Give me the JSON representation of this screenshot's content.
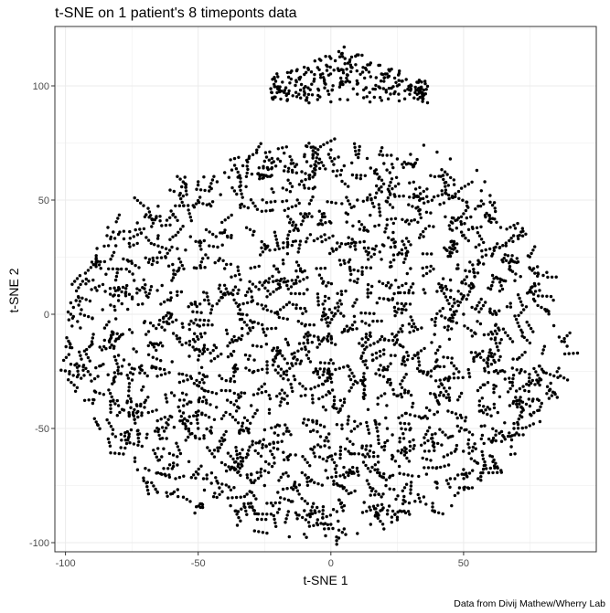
{
  "chart_data": {
    "type": "scatter",
    "title": "t-SNE on 1 patient's 8 timeponts data",
    "xlabel": "t-SNE 1",
    "ylabel": "t-SNE 2",
    "caption": "Data from Divij Mathew/Wherry Lab",
    "xlim": [
      -104,
      100
    ],
    "ylim": [
      -104,
      126
    ],
    "xticks": [
      -100,
      -50,
      0,
      50
    ],
    "yticks": [
      -100,
      -50,
      0,
      50,
      100
    ],
    "grid": true,
    "point_color": "#000000",
    "main_cluster": {
      "center": [
        -5,
        -10
      ],
      "x_extent": [
        -100,
        90
      ],
      "y_extent": [
        -98,
        75
      ],
      "approx_points": 3400
    },
    "top_cluster": {
      "x_extent": [
        -23,
        37
      ],
      "y_extent": [
        92,
        117
      ],
      "approx_points": 260
    },
    "points": [
      [
        -98,
        5
      ],
      [
        -97,
        3
      ],
      [
        -99,
        1
      ],
      [
        -96,
        6
      ],
      [
        -95,
        4
      ],
      [
        -94,
        2
      ],
      [
        -97,
        -1
      ],
      [
        -98,
        0
      ],
      [
        -84,
        38
      ],
      [
        -82,
        36
      ],
      [
        -80,
        35
      ],
      [
        -78,
        33
      ],
      [
        -76,
        31
      ],
      [
        -83,
        33
      ],
      [
        -81,
        30
      ],
      [
        -85,
        10
      ],
      [
        -82,
        8
      ],
      [
        -80,
        6
      ],
      [
        -83,
        4
      ],
      [
        -86,
        2
      ],
      [
        -81,
        -2
      ],
      [
        -80,
        -18
      ],
      [
        -78,
        -20
      ],
      [
        -76,
        -22
      ],
      [
        -74,
        -24
      ],
      [
        -79,
        -26
      ],
      [
        -82,
        -38
      ],
      [
        -80,
        -40
      ],
      [
        -78,
        -42
      ],
      [
        -76,
        -44
      ],
      [
        -74,
        -46
      ],
      [
        -60,
        -45
      ],
      [
        -55,
        -48
      ],
      [
        -50,
        -50
      ],
      [
        -45,
        -52
      ],
      [
        -40,
        -55
      ],
      [
        -55,
        60
      ],
      [
        -50,
        58
      ],
      [
        -45,
        55
      ],
      [
        -40,
        62
      ],
      [
        -35,
        60
      ],
      [
        -25,
        67
      ],
      [
        -20,
        68
      ],
      [
        -15,
        66
      ],
      [
        -10,
        69
      ],
      [
        -5,
        70
      ],
      [
        0,
        72
      ],
      [
        5,
        65
      ],
      [
        15,
        64
      ],
      [
        20,
        66
      ],
      [
        25,
        68
      ],
      [
        30,
        70
      ],
      [
        35,
        74
      ],
      [
        40,
        71
      ],
      [
        45,
        68
      ],
      [
        55,
        63
      ],
      [
        58,
        58
      ],
      [
        60,
        52
      ],
      [
        62,
        45
      ],
      [
        64,
        38
      ],
      [
        66,
        30
      ],
      [
        68,
        24
      ],
      [
        75,
        20
      ],
      [
        78,
        18
      ],
      [
        80,
        17
      ],
      [
        84,
        -5
      ],
      [
        86,
        -10
      ],
      [
        88,
        -12
      ],
      [
        89,
        -14
      ],
      [
        80,
        -25
      ],
      [
        78,
        -30
      ],
      [
        76,
        -38
      ],
      [
        72,
        -45
      ],
      [
        70,
        -52
      ],
      [
        68,
        -58
      ],
      [
        60,
        -62
      ],
      [
        55,
        -65
      ],
      [
        50,
        -68
      ],
      [
        45,
        -72
      ],
      [
        40,
        -76
      ],
      [
        35,
        -80
      ],
      [
        28,
        -82
      ],
      [
        22,
        -84
      ],
      [
        18,
        -88
      ],
      [
        15,
        -92
      ],
      [
        20,
        -94
      ],
      [
        25,
        -90
      ],
      [
        -5,
        -90
      ],
      [
        0,
        -92
      ],
      [
        5,
        -94
      ],
      [
        10,
        -96
      ],
      [
        -2,
        -97
      ],
      [
        3,
        -98
      ],
      [
        -30,
        -70
      ],
      [
        -25,
        -75
      ],
      [
        -20,
        -78
      ],
      [
        -15,
        -82
      ],
      [
        -10,
        -86
      ],
      [
        -50,
        -70
      ],
      [
        -48,
        -72
      ],
      [
        -45,
        -74
      ],
      [
        -42,
        -76
      ],
      [
        -20,
        104
      ],
      [
        -15,
        103
      ],
      [
        -10,
        105
      ],
      [
        -5,
        108
      ],
      [
        0,
        112
      ],
      [
        3,
        115
      ],
      [
        5,
        117
      ],
      [
        8,
        108
      ],
      [
        12,
        106
      ],
      [
        15,
        104
      ],
      [
        20,
        102
      ],
      [
        25,
        100
      ],
      [
        30,
        98
      ],
      [
        35,
        96
      ],
      [
        -10,
        96
      ],
      [
        -5,
        94
      ],
      [
        0,
        93
      ],
      [
        10,
        101
      ],
      [
        15,
        110
      ],
      [
        18,
        109
      ],
      [
        -40,
        20
      ],
      [
        -30,
        10
      ],
      [
        -20,
        0
      ],
      [
        -10,
        -10
      ],
      [
        0,
        -20
      ],
      [
        10,
        -30
      ],
      [
        20,
        30
      ],
      [
        30,
        20
      ],
      [
        40,
        10
      ],
      [
        50,
        0
      ],
      [
        -60,
        0
      ],
      [
        -50,
        -20
      ],
      [
        -30,
        -40
      ],
      [
        0,
        40
      ],
      [
        10,
        50
      ],
      [
        -20,
        30
      ],
      [
        30,
        -50
      ],
      [
        40,
        -20
      ]
    ]
  }
}
